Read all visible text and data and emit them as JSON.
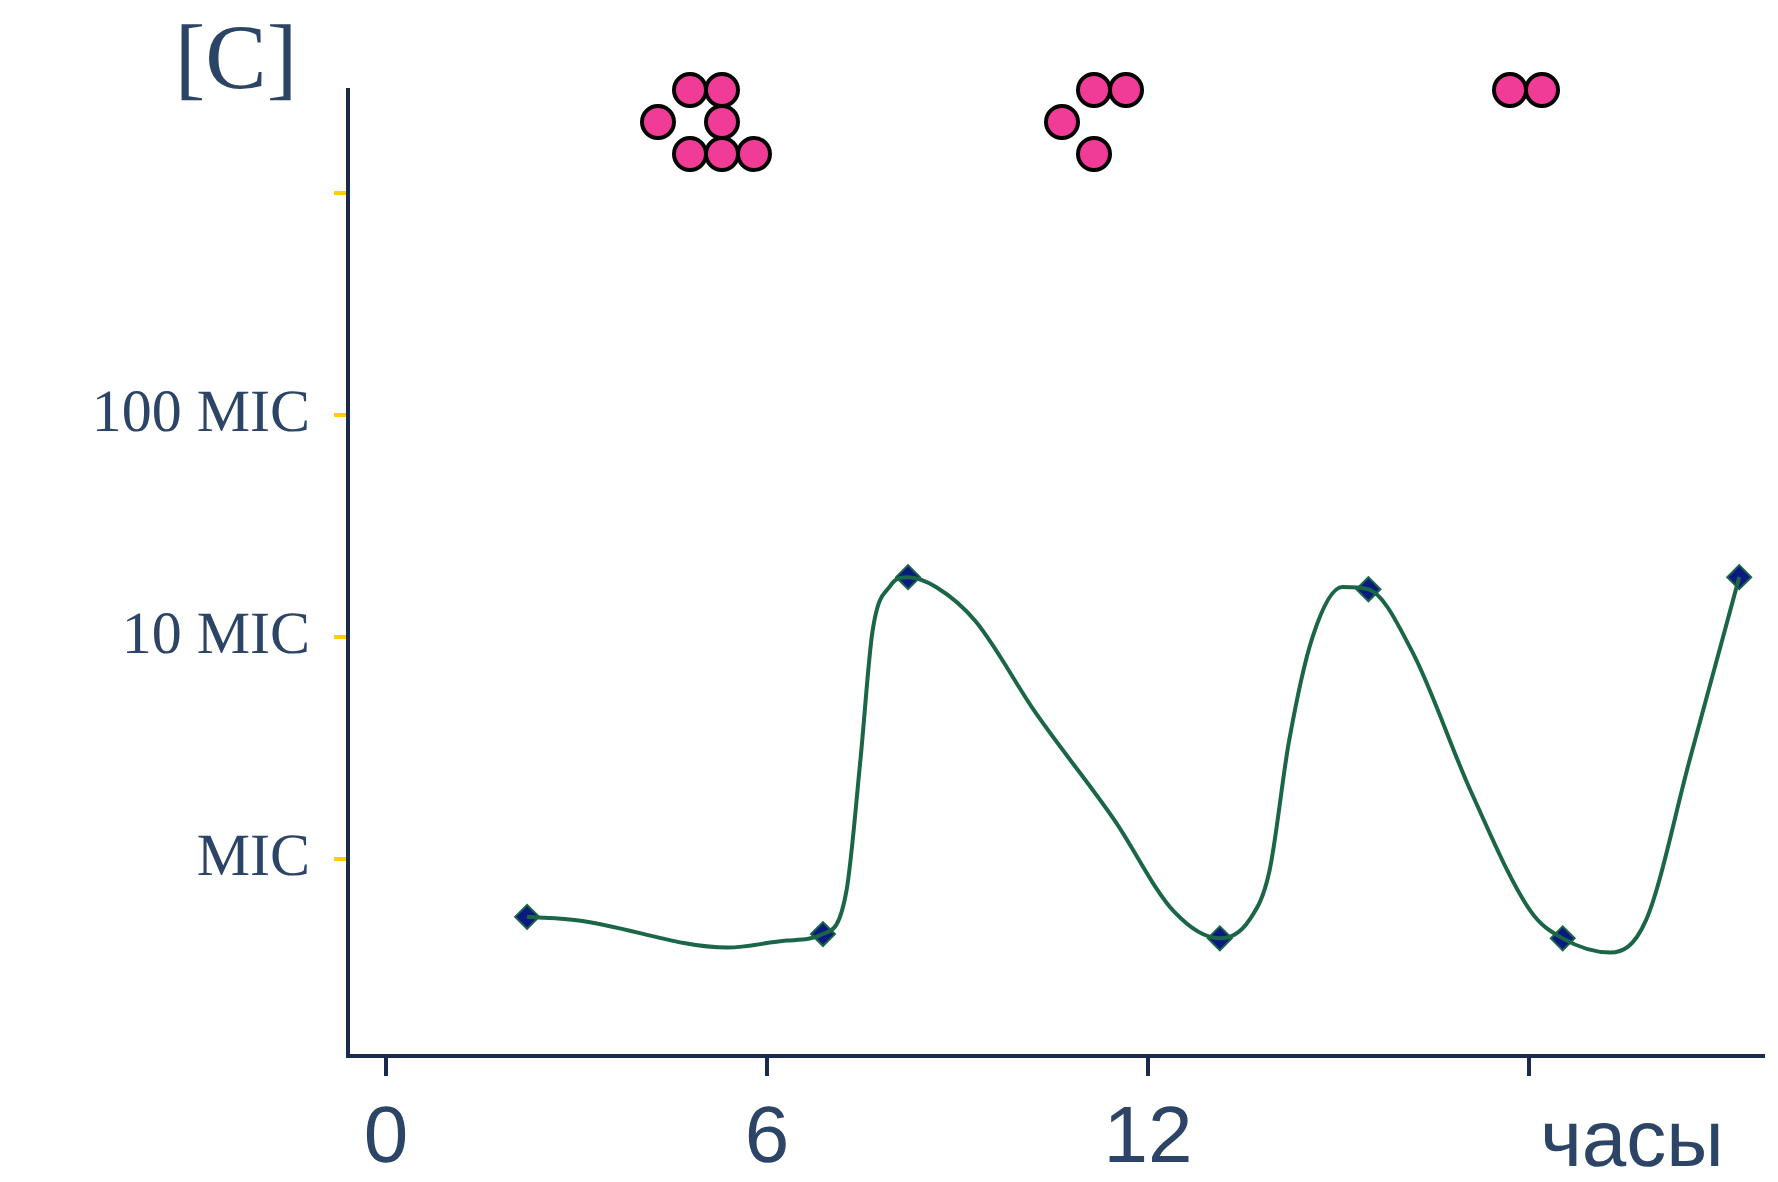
{
  "chart_data": {
    "type": "line",
    "ylabel": "[C]",
    "xlabel": "часы",
    "log": "y",
    "xlim": [
      -0.6,
      21.7
    ],
    "xticks": [
      0,
      6,
      12,
      {
        "value": 18,
        "label": null
      }
    ],
    "ylim": [
      0.13,
      2900
    ],
    "yticks": [
      {
        "value": 1,
        "label": "MIC"
      },
      {
        "value": 10,
        "label": "10 MIC"
      },
      {
        "value": 100,
        "label": "100 MIC"
      },
      {
        "value": 1000,
        "label": null
      }
    ],
    "grid": false,
    "legend": false,
    "series": [
      {
        "type": "line",
        "color": "#1a6646",
        "marker": "none",
        "x": [
          2.22,
          3.03,
          5.38,
          6.31,
          6.88,
          7.25,
          7.47,
          7.66,
          7.94,
          8.22,
          8.66,
          9.28,
          10.22,
          11.47,
          12.41,
          13.13,
          13.59,
          13.91,
          14.22,
          14.59,
          15.06,
          15.47,
          16.16,
          17.09,
          18.03,
          18.53,
          19.28,
          19.84,
          20.53,
          21.31
        ],
        "values": [
          0.55,
          0.53,
          0.4,
          0.43,
          0.46,
          0.72,
          2.8,
          10.6,
          17,
          18.6,
          16.8,
          11.8,
          4.6,
          1.5,
          0.58,
          0.44,
          0.53,
          0.88,
          3.4,
          10,
          16.8,
          16.4,
          8.6,
          2,
          0.58,
          0.44,
          0.38,
          0.53,
          2.8,
          18.6
        ]
      },
      {
        "type": "scatter",
        "color": "#0a1a80",
        "marker": "diamond",
        "x": [
          2.22,
          6.88,
          8.22,
          13.13,
          15.47,
          18.53,
          21.31
        ],
        "values": [
          0.55,
          0.46,
          18.6,
          0.44,
          16.4,
          0.44,
          18.6
        ]
      }
    ]
  }
}
